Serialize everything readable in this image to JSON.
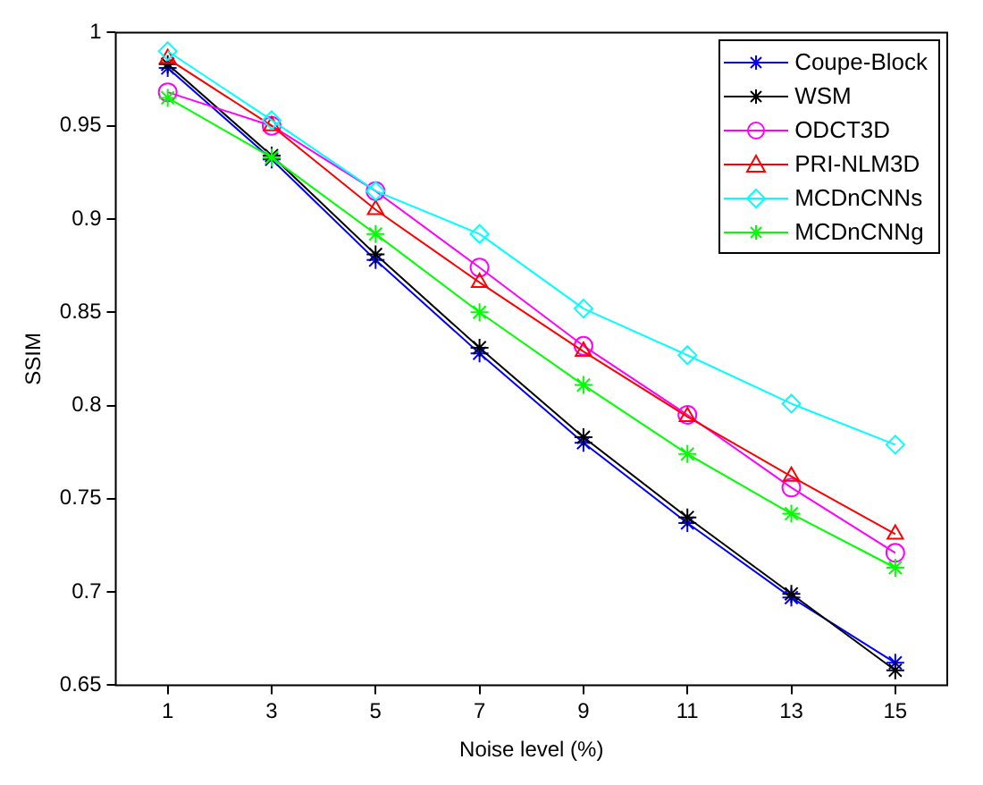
{
  "chart_data": {
    "type": "line",
    "xlabel": "Noise level (%)",
    "ylabel": "SSIM",
    "x": [
      1,
      3,
      5,
      7,
      9,
      11,
      13,
      15
    ],
    "series": [
      {
        "name": "Coupe-Block",
        "color": "#0000ff",
        "marker": "cross",
        "values": [
          0.981,
          0.932,
          0.878,
          0.828,
          0.78,
          0.737,
          0.697,
          0.662
        ]
      },
      {
        "name": "WSM",
        "color": "#000000",
        "marker": "cross",
        "values": [
          0.983,
          0.934,
          0.881,
          0.831,
          0.783,
          0.74,
          0.699,
          0.658
        ]
      },
      {
        "name": "ODCT3D",
        "color": "#ff00ff",
        "marker": "circle",
        "values": [
          0.968,
          0.95,
          0.915,
          0.874,
          0.832,
          0.795,
          0.756,
          0.721
        ]
      },
      {
        "name": "PRI-NLM3D",
        "color": "#ff0000",
        "marker": "triangle",
        "values": [
          0.986,
          0.95,
          0.905,
          0.866,
          0.829,
          0.794,
          0.762,
          0.731
        ]
      },
      {
        "name": "MCDnCNNs",
        "color": "#00ffff",
        "marker": "diamond",
        "values": [
          0.99,
          0.953,
          0.915,
          0.892,
          0.852,
          0.827,
          0.801,
          0.779
        ]
      },
      {
        "name": "MCDnCNNg",
        "color": "#00ff00",
        "marker": "cross",
        "values": [
          0.965,
          0.933,
          0.892,
          0.85,
          0.811,
          0.774,
          0.742,
          0.713
        ]
      }
    ],
    "xlim": [
      0,
      16
    ],
    "xticks": [
      1,
      3,
      5,
      7,
      9,
      11,
      13,
      15
    ],
    "ylim": [
      0.65,
      1
    ],
    "yticks": [
      0.65,
      0.7,
      0.75,
      0.8,
      0.85,
      0.9,
      0.95,
      1
    ],
    "grid": false,
    "legend": "top right",
    "line_style": "solid"
  }
}
